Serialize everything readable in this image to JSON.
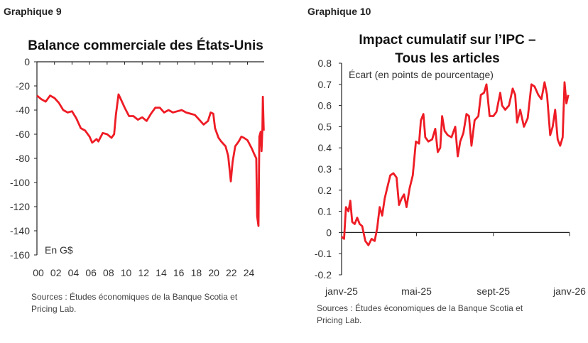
{
  "chart_data": [
    {
      "type": "line",
      "label": "Graphique 9",
      "title": "Balance commerciale des États-Unis",
      "unit_label": "En G$",
      "ylim": [
        -160,
        0
      ],
      "yticks": [
        0,
        -20,
        -40,
        -60,
        -80,
        -100,
        -120,
        -140,
        -160
      ],
      "xticks": [
        "00",
        "02",
        "04",
        "06",
        "08",
        "10",
        "12",
        "14",
        "16",
        "18",
        "20",
        "22",
        "24"
      ],
      "xlim": [
        2000,
        2025.9
      ],
      "color": "#ee1c25",
      "grid": false,
      "sources": [
        "Sources : Études économiques de la Banque Scotia et",
        "Pricing Lab."
      ],
      "x": [
        2000,
        2000.5,
        2001,
        2001.5,
        2002,
        2002.5,
        2003,
        2003.5,
        2004,
        2004.5,
        2005,
        2005.5,
        2006,
        2006.3,
        2006.8,
        2007,
        2007.5,
        2008,
        2008.5,
        2008.8,
        2009,
        2009.3,
        2009.5,
        2010,
        2010.5,
        2011,
        2011.5,
        2012,
        2012.5,
        2013,
        2013.5,
        2014,
        2014.5,
        2015,
        2015.5,
        2016,
        2016.5,
        2017,
        2017.5,
        2018,
        2018.5,
        2019,
        2019.5,
        2019.8,
        2020.1,
        2020.3,
        2020.7,
        2021,
        2021.5,
        2021.8,
        2022.1,
        2022.3,
        2022.6,
        2023,
        2023.3,
        2023.6,
        2024,
        2024.5,
        2024.8,
        2025.0,
        2025.1,
        2025.25,
        2025.35,
        2025.5,
        2025.6,
        2025.7,
        2025.75,
        2025.85
      ],
      "y": [
        -28,
        -31,
        -33,
        -28,
        -30,
        -34,
        -40,
        -42,
        -41,
        -47,
        -55,
        -57,
        -62,
        -67,
        -64,
        -66,
        -59,
        -60,
        -63,
        -60,
        -44,
        -27,
        -30,
        -38,
        -45,
        -45,
        -48,
        -46,
        -49,
        -43,
        -38,
        -38,
        -42,
        -40,
        -42,
        -41,
        -40,
        -42,
        -43,
        -44,
        -48,
        -52,
        -49,
        -42,
        -43,
        -55,
        -63,
        -66,
        -70,
        -78,
        -99,
        -83,
        -70,
        -66,
        -62,
        -63,
        -65,
        -72,
        -77,
        -80,
        -128,
        -136,
        -62,
        -58,
        -74,
        -55,
        -29,
        -57
      ]
    },
    {
      "type": "line",
      "label": "Graphique 10",
      "title": [
        "Impact cumulatif sur l’IPC –",
        "Tous les articles"
      ],
      "unit_label": "Écart (en points de pourcentage)",
      "ylim": [
        -0.2,
        0.8
      ],
      "yticks": [
        "0.8",
        "0.7",
        "0.6",
        "0.5",
        "0.4",
        "0.3",
        "0.2",
        "0.1",
        "0",
        "-0.1",
        "-0.2"
      ],
      "xticks": [
        {
          "label": "janv-25",
          "date": "2025-01-01"
        },
        {
          "label": "mai-25",
          "date": "2025-05-01"
        },
        {
          "label": "sept-25",
          "date": "2025-09-01"
        },
        {
          "label": "janv-26",
          "date": "2026-01-01"
        }
      ],
      "color": "#ee1c25",
      "grid": false,
      "sources": [
        "Sources : Études économiques de la Banque Scotia et",
        "Pricing Lab."
      ],
      "x": [
        "2025-01-01",
        "2025-01-05",
        "2025-01-08",
        "2025-01-12",
        "2025-01-15",
        "2025-01-18",
        "2025-01-22",
        "2025-01-26",
        "2025-01-30",
        "2025-02-03",
        "2025-02-08",
        "2025-02-13",
        "2025-02-18",
        "2025-02-23",
        "2025-02-27",
        "2025-03-03",
        "2025-03-07",
        "2025-03-11",
        "2025-03-15",
        "2025-03-20",
        "2025-03-25",
        "2025-03-30",
        "2025-04-03",
        "2025-04-07",
        "2025-04-11",
        "2025-04-15",
        "2025-04-20",
        "2025-04-25",
        "2025-04-30",
        "2025-05-05",
        "2025-05-08",
        "2025-05-12",
        "2025-05-15",
        "2025-05-20",
        "2025-05-26",
        "2025-05-31",
        "2025-06-04",
        "2025-06-08",
        "2025-06-11",
        "2025-06-15",
        "2025-06-20",
        "2025-06-26",
        "2025-07-02",
        "2025-07-06",
        "2025-07-10",
        "2025-07-15",
        "2025-07-20",
        "2025-07-24",
        "2025-07-28",
        "2025-08-02",
        "2025-08-08",
        "2025-08-12",
        "2025-08-17",
        "2025-08-21",
        "2025-08-26",
        "2025-09-01",
        "2025-09-06",
        "2025-09-12",
        "2025-09-15",
        "2025-09-20",
        "2025-09-26",
        "2025-10-02",
        "2025-10-06",
        "2025-10-09",
        "2025-10-14",
        "2025-10-20",
        "2025-10-26",
        "2025-11-01",
        "2025-11-06",
        "2025-11-12",
        "2025-11-17",
        "2025-11-22",
        "2025-11-26",
        "2025-12-01",
        "2025-12-05",
        "2025-12-09",
        "2025-12-13",
        "2025-12-17",
        "2025-12-21",
        "2025-12-24",
        "2025-12-27",
        "2025-12-30"
      ],
      "y": [
        -0.02,
        -0.03,
        0.12,
        0.1,
        0.15,
        0.05,
        0.04,
        0.07,
        0.04,
        0.03,
        -0.04,
        -0.06,
        -0.03,
        -0.04,
        0.02,
        0.12,
        0.08,
        0.16,
        0.21,
        0.27,
        0.28,
        0.26,
        0.13,
        0.16,
        0.18,
        0.12,
        0.21,
        0.27,
        0.43,
        0.42,
        0.53,
        0.56,
        0.45,
        0.43,
        0.44,
        0.49,
        0.38,
        0.4,
        0.55,
        0.48,
        0.46,
        0.45,
        0.5,
        0.36,
        0.43,
        0.47,
        0.56,
        0.55,
        0.41,
        0.53,
        0.55,
        0.65,
        0.66,
        0.7,
        0.55,
        0.55,
        0.57,
        0.66,
        0.6,
        0.58,
        0.6,
        0.68,
        0.65,
        0.52,
        0.58,
        0.5,
        0.54,
        0.7,
        0.69,
        0.65,
        0.63,
        0.71,
        0.65,
        0.46,
        0.5,
        0.58,
        0.44,
        0.41,
        0.45,
        0.71,
        0.61,
        0.65
      ]
    }
  ]
}
